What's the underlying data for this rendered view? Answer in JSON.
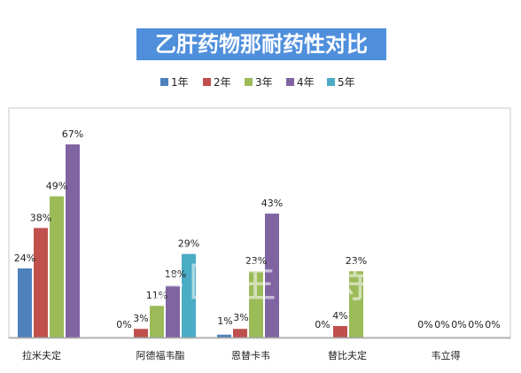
{
  "chart_data": {
    "type": "bar",
    "title": "乙肝药物那耐药性对比",
    "categories": [
      "拉米夫定",
      "阿德福韦酯",
      "恩替卡韦",
      "替比夫定",
      "韦立得"
    ],
    "series": [
      {
        "name": "1年",
        "color": "#4f81bd",
        "values": [
          24,
          0,
          1,
          0,
          0
        ],
        "labels": [
          "24%",
          "0%",
          "1%",
          "0%",
          "0%"
        ]
      },
      {
        "name": "2年",
        "color": "#c0504d",
        "values": [
          38,
          3,
          3,
          4,
          0
        ],
        "labels": [
          "38%",
          "3%",
          "3%",
          "4%",
          "0%"
        ]
      },
      {
        "name": "3年",
        "color": "#9bbb59",
        "values": [
          49,
          11,
          23,
          23,
          0
        ],
        "labels": [
          "49%",
          "11%",
          "23%",
          "23%",
          "0%"
        ]
      },
      {
        "name": "4年",
        "color": "#8064a2",
        "values": [
          67,
          18,
          43,
          null,
          0
        ],
        "labels": [
          "67%",
          "18%",
          "43%",
          "",
          "0%"
        ]
      },
      {
        "name": "5年",
        "color": "#4bacc6",
        "values": [
          null,
          29,
          null,
          null,
          0
        ],
        "labels": [
          "",
          "29%",
          "",
          "",
          "0%"
        ]
      }
    ],
    "ylim": [
      0,
      70
    ],
    "grid": false,
    "legend_position": "top",
    "title_background": "#4f8fdc",
    "watermark": "妙手医生新特药"
  }
}
